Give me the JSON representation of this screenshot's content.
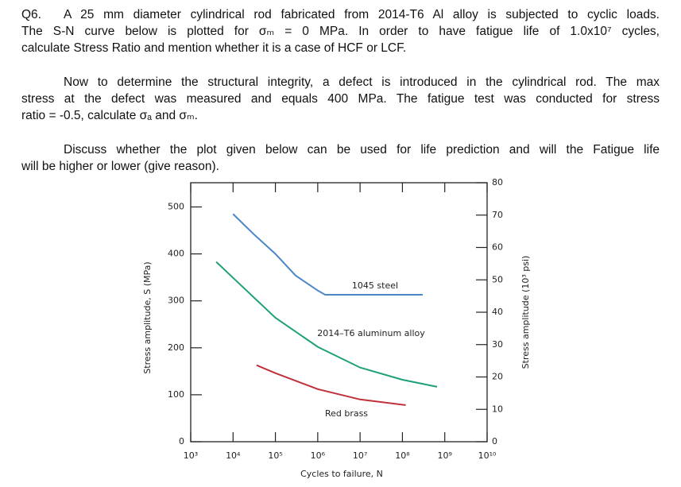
{
  "question": {
    "number": "Q6.",
    "paragraphs": [
      [
        "A 25 mm diameter cylindrical rod fabricated from 2014-T6 Al alloy is subjected to cyclic loads.",
        "The S-N curve below is plotted for σₘ = 0 MPa.  In order to have fatigue life of 1.0x10⁷ cycles,",
        "calculate Stress Ratio and mention whether it is a case of HCF or LCF."
      ],
      [
        "Now to determine the structural integrity, a defect is introduced in the cylindrical rod. The max",
        "stress at the defect was measured and equals 400 MPa.  The fatigue test was conducted for stress",
        "ratio = -0.5, calculate σₐ and σₘ."
      ],
      [
        "Discuss whether the plot given below can be used for life prediction and will the Fatigue life",
        "will be higher or lower (give reason)."
      ]
    ]
  },
  "chart_data": {
    "type": "line",
    "xlabel": "Cycles to failure, N",
    "ylabel": "Stress amplitude, S (MPa)",
    "y2label": "Stress amplitude (10³ psi)",
    "xscale": "log",
    "xlim": [
      1000,
      10000000000
    ],
    "xticks": [
      {
        "value": 1000,
        "label": "10³"
      },
      {
        "value": 10000,
        "label": "10⁴"
      },
      {
        "value": 100000,
        "label": "10⁵"
      },
      {
        "value": 1000000,
        "label": "10⁶"
      },
      {
        "value": 10000000,
        "label": "10⁷"
      },
      {
        "value": 100000000,
        "label": "10⁸"
      },
      {
        "value": 1000000000,
        "label": "10⁹"
      },
      {
        "value": 10000000000,
        "label": "10¹⁰"
      }
    ],
    "ylim": [
      0,
      551.6
    ],
    "yticks": [
      0,
      100,
      200,
      300,
      400,
      500
    ],
    "y2lim": [
      0,
      80
    ],
    "y2ticks": [
      0,
      10,
      20,
      30,
      40,
      50,
      60,
      70,
      80
    ],
    "series": [
      {
        "name": "1045 steel",
        "color": "#4a86c8",
        "x": [
          10000,
          30000,
          100000,
          300000,
          1000000,
          1500000,
          300000000
        ],
        "values": [
          485,
          443,
          400,
          354,
          322,
          313,
          313
        ]
      },
      {
        "name": "2014–T6 aluminum alloy",
        "color": "#1fa07a",
        "x": [
          4000,
          10000,
          100000,
          1000000,
          10000000,
          100000000,
          660000000
        ],
        "values": [
          383,
          349,
          264,
          202,
          158,
          132,
          117
        ]
      },
      {
        "name": "Red brass",
        "color": "#c0303a",
        "x": [
          36000,
          100000,
          1000000,
          10000000,
          120000000
        ],
        "values": [
          163,
          146,
          112,
          90,
          78
        ]
      }
    ]
  }
}
